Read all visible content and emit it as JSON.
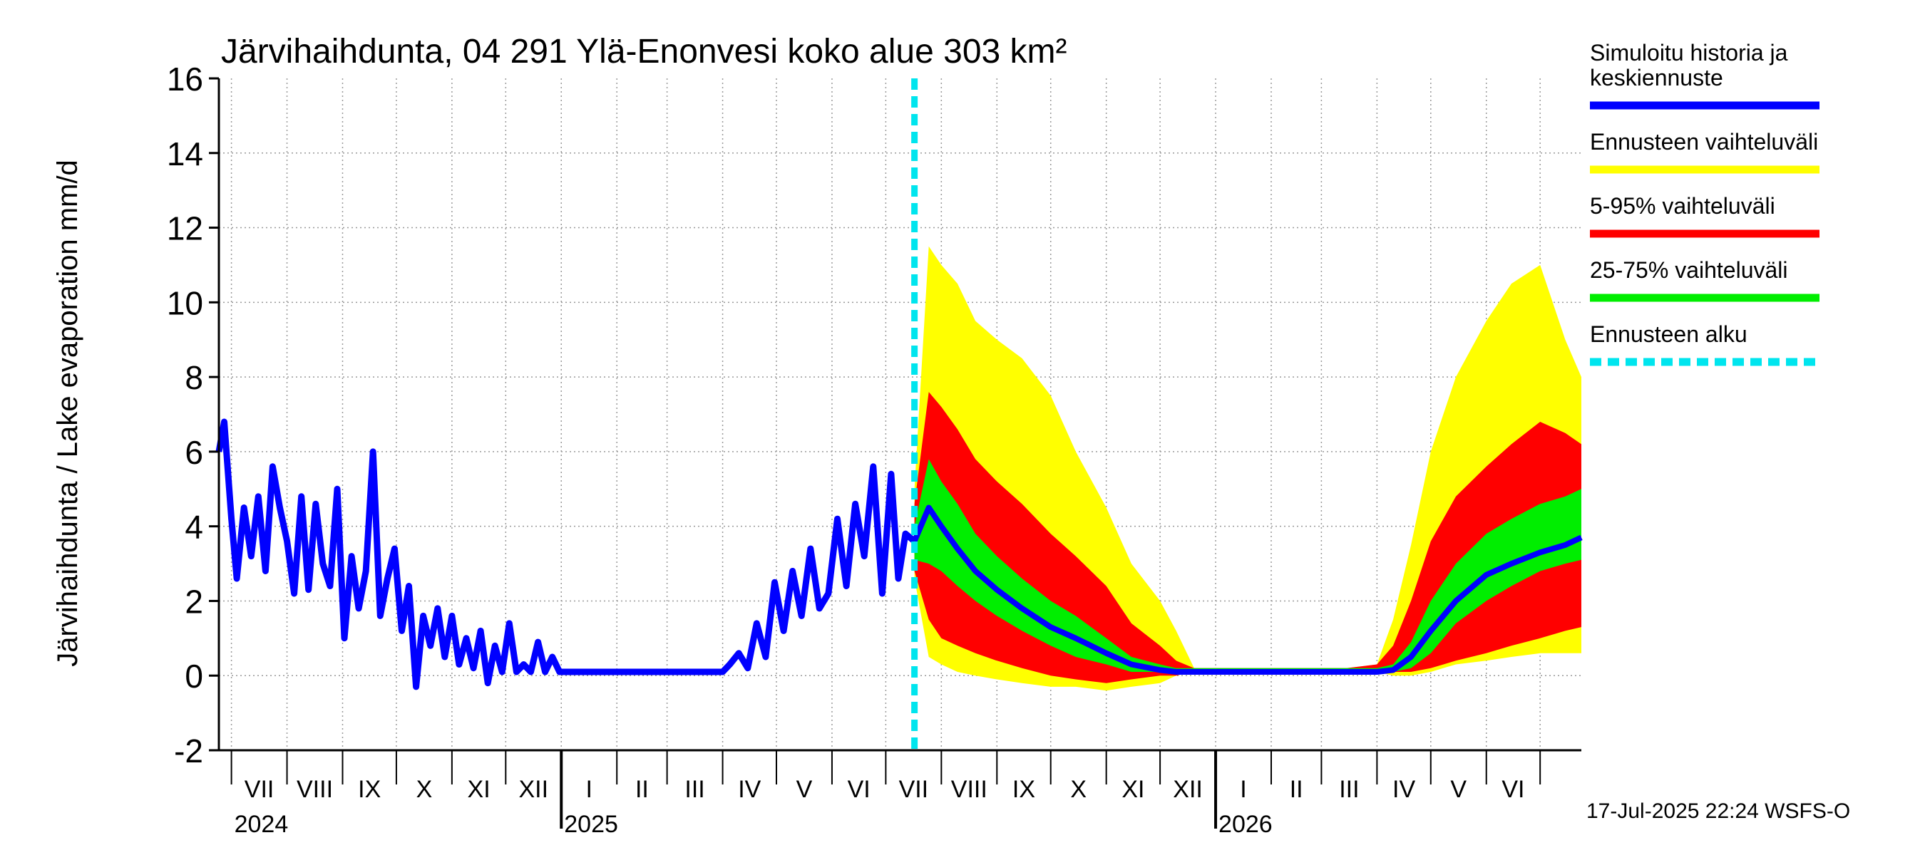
{
  "chart_data": {
    "type": "area",
    "title": "Järvihaihdunta, 04 291 Ylä-Enonvesi koko alue 303 km²",
    "ylabel": "Järvihaihdunta / Lake evaporation   mm/d",
    "xlabel": "",
    "ylim": [
      -2,
      16
    ],
    "yticks": [
      -2,
      0,
      2,
      4,
      6,
      8,
      10,
      12,
      14,
      16
    ],
    "xlim": [
      "2024-06-24",
      "2026-07-24"
    ],
    "grid": true,
    "legend_position": "right",
    "month_labels": [
      "VII",
      "VIII",
      "IX",
      "X",
      "XI",
      "XII",
      "I",
      "II",
      "III",
      "IV",
      "V",
      "VI",
      "VII",
      "VIII",
      "IX",
      "X",
      "XI",
      "XII",
      "I",
      "II",
      "III",
      "IV",
      "V",
      "VI"
    ],
    "year_labels": [
      {
        "label": "2024",
        "date": "2024-07-01"
      },
      {
        "label": "2025",
        "date": "2025-01-01"
      },
      {
        "label": "2026",
        "date": "2026-01-01"
      }
    ],
    "forecast_start": "2025-07-17",
    "footer": "17-Jul-2025 22:24 WSFS-O",
    "colors": {
      "history": "#0000ff",
      "full_range": "#ffff00",
      "p5_95": "#ff0000",
      "p25_75": "#00ee00",
      "forecast_start": "#00e5ee",
      "grid": "#999999"
    },
    "legend": [
      {
        "key": "history",
        "lines": [
          "Simuloitu historia ja",
          "keskiennuste"
        ],
        "style": "solid",
        "color": "#0000ff"
      },
      {
        "key": "full_range",
        "lines": [
          "Ennusteen vaihteluväli"
        ],
        "style": "solid",
        "color": "#ffff00"
      },
      {
        "key": "p5_95",
        "lines": [
          "5-95% vaihteluväli"
        ],
        "style": "solid",
        "color": "#ff0000"
      },
      {
        "key": "p25_75",
        "lines": [
          "25-75% vaihteluväli"
        ],
        "style": "solid",
        "color": "#00ee00"
      },
      {
        "key": "forecast_start",
        "lines": [
          "Ennusteen alku"
        ],
        "style": "dashed",
        "color": "#00e5ee"
      }
    ],
    "series": [
      {
        "name": "Simuloitu historia ja keskiennuste",
        "kind": "history",
        "x": [
          "2024-06-24",
          "2024-06-27",
          "2024-07-01",
          "2024-07-04",
          "2024-07-08",
          "2024-07-12",
          "2024-07-16",
          "2024-07-20",
          "2024-07-24",
          "2024-07-28",
          "2024-08-01",
          "2024-08-05",
          "2024-08-09",
          "2024-08-13",
          "2024-08-17",
          "2024-08-21",
          "2024-08-25",
          "2024-08-29",
          "2024-09-02",
          "2024-09-06",
          "2024-09-10",
          "2024-09-14",
          "2024-09-18",
          "2024-09-22",
          "2024-09-26",
          "2024-09-30",
          "2024-10-04",
          "2024-10-08",
          "2024-10-12",
          "2024-10-16",
          "2024-10-20",
          "2024-10-24",
          "2024-10-28",
          "2024-11-01",
          "2024-11-05",
          "2024-11-09",
          "2024-11-13",
          "2024-11-17",
          "2024-11-21",
          "2024-11-25",
          "2024-11-29",
          "2024-12-03",
          "2024-12-07",
          "2024-12-11",
          "2024-12-15",
          "2024-12-19",
          "2024-12-23",
          "2024-12-27",
          "2024-12-31",
          "2025-01-15",
          "2025-02-01",
          "2025-03-01",
          "2025-04-01",
          "2025-04-05",
          "2025-04-10",
          "2025-04-15",
          "2025-04-20",
          "2025-04-25",
          "2025-04-30",
          "2025-05-05",
          "2025-05-10",
          "2025-05-15",
          "2025-05-20",
          "2025-05-25",
          "2025-05-30",
          "2025-06-04",
          "2025-06-09",
          "2025-06-14",
          "2025-06-19",
          "2025-06-24",
          "2025-06-29",
          "2025-07-04",
          "2025-07-08",
          "2025-07-12",
          "2025-07-17"
        ],
        "y": [
          6.0,
          6.8,
          4.2,
          2.6,
          4.5,
          3.2,
          4.8,
          2.8,
          5.6,
          4.5,
          3.6,
          2.2,
          4.8,
          2.3,
          4.6,
          3.0,
          2.4,
          5.0,
          1.0,
          3.2,
          1.8,
          2.8,
          6.0,
          1.6,
          2.6,
          3.4,
          1.2,
          2.4,
          -0.3,
          1.6,
          0.8,
          1.8,
          0.5,
          1.6,
          0.3,
          1.0,
          0.2,
          1.2,
          -0.2,
          0.8,
          0.1,
          1.4,
          0.1,
          0.3,
          0.1,
          0.9,
          0.1,
          0.5,
          0.1,
          0.1,
          0.1,
          0.1,
          0.1,
          0.3,
          0.6,
          0.2,
          1.4,
          0.5,
          2.5,
          1.2,
          2.8,
          1.6,
          3.4,
          1.8,
          2.2,
          4.2,
          2.4,
          4.6,
          3.2,
          5.6,
          2.2,
          5.4,
          2.6,
          3.8,
          3.6
        ]
      },
      {
        "name": "Ennusteen vaihteluväli",
        "kind": "band",
        "x": [
          "2025-07-17",
          "2025-07-25",
          "2025-08-01",
          "2025-08-10",
          "2025-08-20",
          "2025-09-01",
          "2025-09-15",
          "2025-10-01",
          "2025-10-15",
          "2025-11-01",
          "2025-11-15",
          "2025-12-01",
          "2025-12-10",
          "2025-12-20",
          "2026-01-15",
          "2026-02-15",
          "2026-03-15",
          "2026-04-01",
          "2026-04-10",
          "2026-04-20",
          "2026-05-01",
          "2026-05-15",
          "2026-06-01",
          "2026-06-15",
          "2026-07-01",
          "2026-07-15",
          "2026-07-24"
        ],
        "low": [
          2.6,
          0.5,
          0.3,
          0.1,
          0.0,
          -0.1,
          -0.2,
          -0.3,
          -0.3,
          -0.4,
          -0.3,
          -0.2,
          0.0,
          0.1,
          0.1,
          0.1,
          0.1,
          0.1,
          0.0,
          0.0,
          0.1,
          0.3,
          0.4,
          0.5,
          0.6,
          0.6,
          0.6
        ],
        "high": [
          5.0,
          11.5,
          11.0,
          10.5,
          9.5,
          9.0,
          8.5,
          7.5,
          6.0,
          4.5,
          3.0,
          2.0,
          1.2,
          0.2,
          0.2,
          0.2,
          0.2,
          0.3,
          1.5,
          3.5,
          6.0,
          8.0,
          9.5,
          10.5,
          11.0,
          9.0,
          8.0
        ]
      },
      {
        "name": "5-95% vaihteluväli",
        "kind": "band",
        "x": [
          "2025-07-17",
          "2025-07-25",
          "2025-08-01",
          "2025-08-10",
          "2025-08-20",
          "2025-09-01",
          "2025-09-15",
          "2025-10-01",
          "2025-10-15",
          "2025-11-01",
          "2025-11-15",
          "2025-12-01",
          "2025-12-10",
          "2025-12-20",
          "2026-01-15",
          "2026-02-15",
          "2026-03-15",
          "2026-04-01",
          "2026-04-10",
          "2026-04-20",
          "2026-05-01",
          "2026-05-15",
          "2026-06-01",
          "2026-06-15",
          "2026-07-01",
          "2026-07-15",
          "2026-07-24"
        ],
        "low": [
          2.8,
          1.5,
          1.0,
          0.8,
          0.6,
          0.4,
          0.2,
          0.0,
          -0.1,
          -0.2,
          -0.1,
          0.0,
          0.0,
          0.1,
          0.1,
          0.1,
          0.1,
          0.1,
          0.1,
          0.1,
          0.2,
          0.4,
          0.6,
          0.8,
          1.0,
          1.2,
          1.3
        ],
        "high": [
          4.6,
          7.6,
          7.2,
          6.6,
          5.8,
          5.2,
          4.6,
          3.8,
          3.2,
          2.4,
          1.4,
          0.8,
          0.4,
          0.2,
          0.2,
          0.2,
          0.2,
          0.3,
          0.8,
          2.0,
          3.6,
          4.8,
          5.6,
          6.2,
          6.8,
          6.5,
          6.2
        ]
      },
      {
        "name": "25-75% vaihteluväli",
        "kind": "band",
        "x": [
          "2025-07-17",
          "2025-07-25",
          "2025-08-01",
          "2025-08-10",
          "2025-08-20",
          "2025-09-01",
          "2025-09-15",
          "2025-10-01",
          "2025-10-15",
          "2025-11-01",
          "2025-11-15",
          "2025-12-01",
          "2025-12-10",
          "2025-12-20",
          "2026-01-15",
          "2026-02-15",
          "2026-03-15",
          "2026-04-01",
          "2026-04-10",
          "2026-04-20",
          "2026-05-01",
          "2026-05-15",
          "2026-06-01",
          "2026-06-15",
          "2026-07-01",
          "2026-07-15",
          "2026-07-24"
        ],
        "low": [
          3.1,
          3.0,
          2.8,
          2.4,
          2.0,
          1.6,
          1.2,
          0.8,
          0.5,
          0.3,
          0.1,
          0.1,
          0.1,
          0.1,
          0.1,
          0.1,
          0.1,
          0.1,
          0.1,
          0.2,
          0.6,
          1.4,
          2.0,
          2.4,
          2.8,
          3.0,
          3.1
        ],
        "high": [
          4.0,
          5.8,
          5.2,
          4.6,
          3.8,
          3.2,
          2.6,
          2.0,
          1.6,
          1.0,
          0.5,
          0.3,
          0.2,
          0.2,
          0.2,
          0.2,
          0.2,
          0.2,
          0.3,
          0.9,
          2.0,
          3.0,
          3.8,
          4.2,
          4.6,
          4.8,
          5.0
        ]
      },
      {
        "name": "Keskiennuste",
        "kind": "median",
        "x": [
          "2025-07-17",
          "2025-07-25",
          "2025-08-01",
          "2025-08-10",
          "2025-08-20",
          "2025-09-01",
          "2025-09-15",
          "2025-10-01",
          "2025-10-15",
          "2025-11-01",
          "2025-11-15",
          "2025-12-01",
          "2025-12-10",
          "2025-12-20",
          "2026-01-15",
          "2026-02-15",
          "2026-03-15",
          "2026-04-01",
          "2026-04-10",
          "2026-04-20",
          "2026-05-01",
          "2026-05-15",
          "2026-06-01",
          "2026-06-15",
          "2026-07-01",
          "2026-07-15",
          "2026-07-24"
        ],
        "y": [
          3.6,
          4.5,
          4.0,
          3.4,
          2.8,
          2.3,
          1.8,
          1.3,
          1.0,
          0.6,
          0.3,
          0.15,
          0.1,
          0.1,
          0.1,
          0.1,
          0.1,
          0.1,
          0.15,
          0.5,
          1.2,
          2.0,
          2.7,
          3.0,
          3.3,
          3.5,
          3.7
        ]
      }
    ]
  }
}
